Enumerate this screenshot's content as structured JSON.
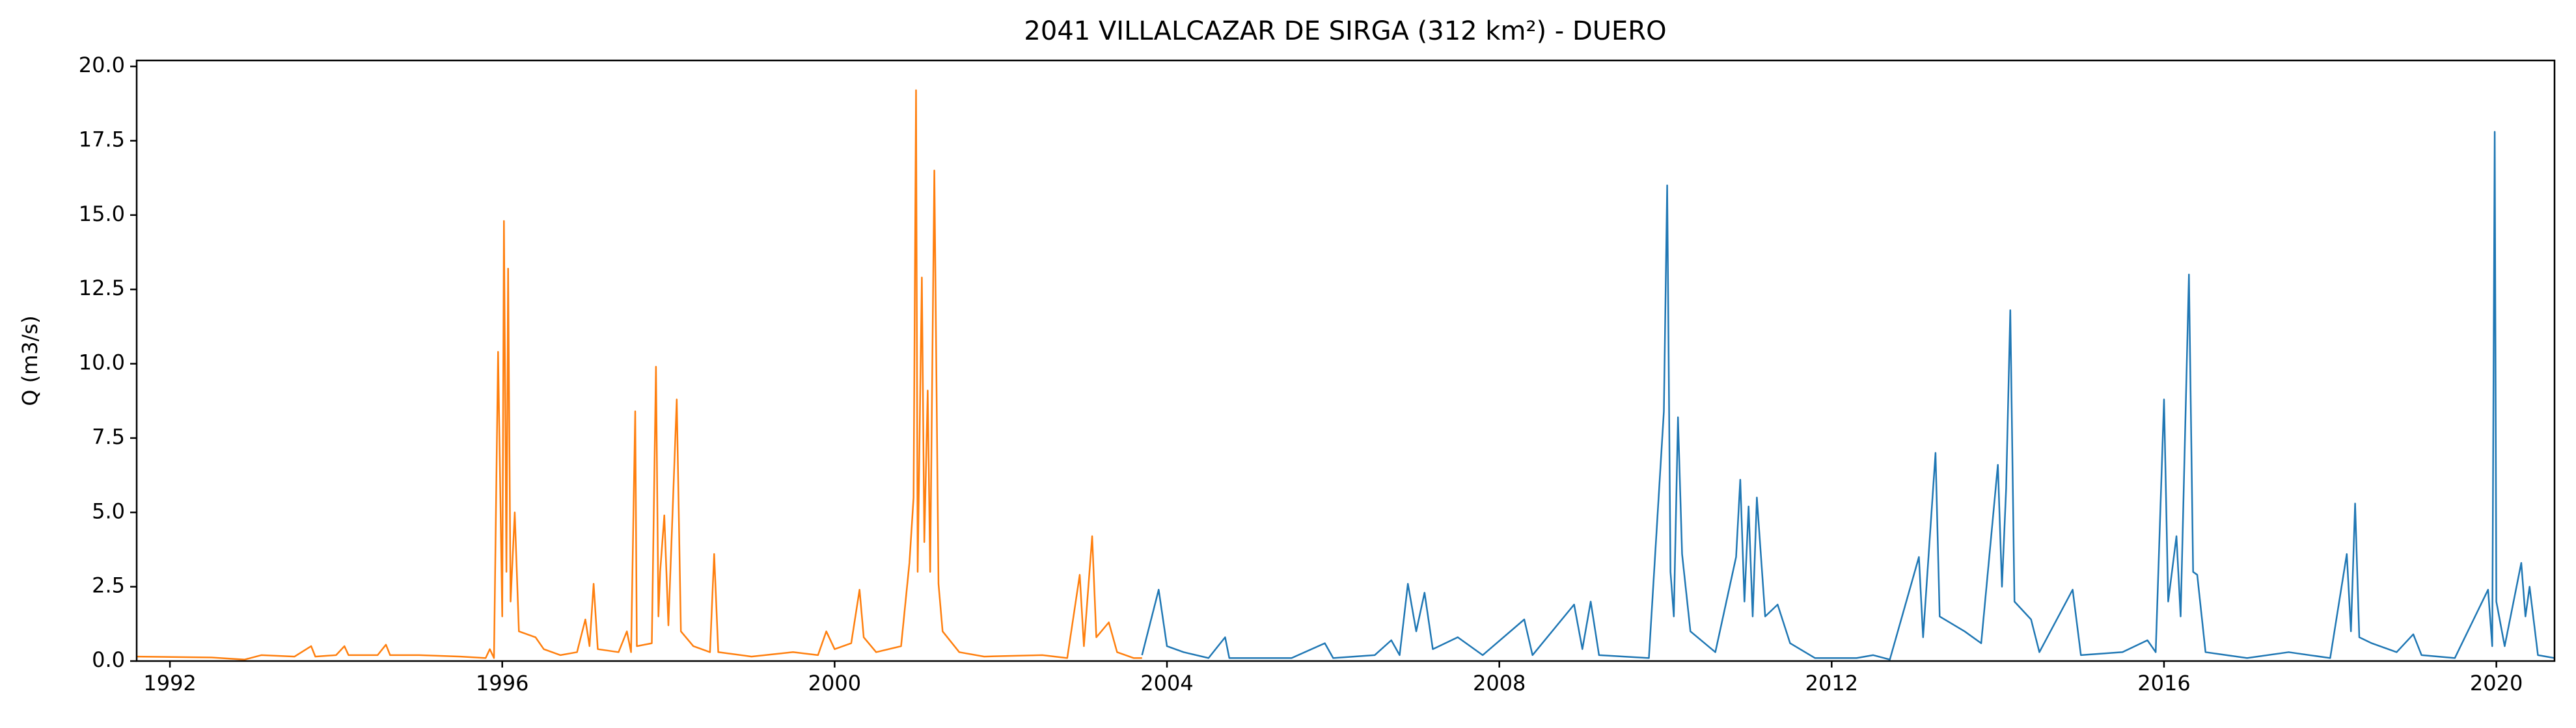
{
  "chart_data": {
    "type": "line",
    "title": "2041 VILLALCAZAR DE SIRGA (312 km²) - DUERO",
    "y_label": "Q (m3/s)",
    "xlim": [
      1991.6,
      2020.7
    ],
    "xticks": [
      1992,
      1996,
      2000,
      2004,
      2008,
      2012,
      2016,
      2020
    ],
    "ylim": [
      0,
      20.2
    ],
    "yticks": [
      {
        "value": 0,
        "label": "0.0"
      },
      2.5,
      {
        "value": 5,
        "label": "5.0"
      },
      7.5,
      {
        "value": 10,
        "label": "10.0"
      },
      12.5,
      {
        "value": 15,
        "label": "15.0"
      },
      17.5,
      {
        "value": 20,
        "label": "20.0"
      }
    ],
    "series": [
      {
        "color": "#ff7f0e",
        "x": [
          1991.6,
          1992.5,
          1992.9,
          1993.1,
          1993.5,
          1993.7,
          1993.75,
          1994.0,
          1994.1,
          1994.15,
          1994.5,
          1994.6,
          1994.65,
          1995.0,
          1995.5,
          1995.8,
          1995.85,
          1995.9,
          1995.95,
          1996.0,
          1996.02,
          1996.05,
          1996.07,
          1996.1,
          1996.15,
          1996.2,
          1996.4,
          1996.5,
          1996.7,
          1996.9,
          1997.0,
          1997.05,
          1997.1,
          1997.15,
          1997.4,
          1997.5,
          1997.55,
          1997.6,
          1997.62,
          1997.8,
          1997.85,
          1997.88,
          1997.9,
          1997.95,
          1998.0,
          1998.1,
          1998.15,
          1998.3,
          1998.5,
          1998.55,
          1998.6,
          1999.0,
          1999.5,
          1999.8,
          1999.9,
          2000.0,
          2000.2,
          2000.3,
          2000.35,
          2000.5,
          2000.8,
          2000.9,
          2000.95,
          2000.98,
          2001.0,
          2001.05,
          2001.08,
          2001.12,
          2001.15,
          2001.2,
          2001.25,
          2001.3,
          2001.5,
          2001.8,
          2002.5,
          2002.8,
          2002.95,
          2003.0,
          2003.1,
          2003.15,
          2003.3,
          2003.4,
          2003.6,
          2003.7
        ],
        "values": [
          0.15,
          0.12,
          0.05,
          0.2,
          0.15,
          0.5,
          0.15,
          0.2,
          0.5,
          0.2,
          0.2,
          0.55,
          0.2,
          0.2,
          0.15,
          0.1,
          0.4,
          0.1,
          10.4,
          1.5,
          14.8,
          3,
          13.2,
          2,
          5,
          1,
          0.8,
          0.4,
          0.2,
          0.3,
          1.4,
          0.5,
          2.6,
          0.4,
          0.3,
          1.0,
          0.3,
          8.4,
          0.5,
          0.6,
          9.9,
          1.5,
          3,
          4.9,
          1.2,
          8.8,
          1.0,
          0.5,
          0.3,
          3.6,
          0.3,
          0.15,
          0.3,
          0.2,
          1.0,
          0.4,
          0.6,
          2.4,
          0.8,
          0.3,
          0.5,
          3.3,
          5.5,
          19.2,
          3,
          12.9,
          4,
          9.1,
          3,
          16.5,
          2.6,
          1,
          0.3,
          0.15,
          0.2,
          0.1,
          2.9,
          0.5,
          4.2,
          0.8,
          1.3,
          0.3,
          0.1,
          0.1
        ]
      },
      {
        "color": "#1f77b4",
        "x": [
          2003.7,
          2003.9,
          2004.0,
          2004.2,
          2004.5,
          2004.7,
          2004.75,
          2005.5,
          2005.9,
          2006.0,
          2006.5,
          2006.7,
          2006.8,
          2006.9,
          2007.0,
          2007.1,
          2007.2,
          2007.5,
          2007.8,
          2008.3,
          2008.4,
          2008.9,
          2009.0,
          2009.1,
          2009.2,
          2009.8,
          2009.98,
          2010.02,
          2010.06,
          2010.1,
          2010.15,
          2010.2,
          2010.3,
          2010.6,
          2010.85,
          2010.9,
          2010.95,
          2011.0,
          2011.05,
          2011.1,
          2011.2,
          2011.35,
          2011.5,
          2011.8,
          2012.3,
          2012.5,
          2012.7,
          2013.05,
          2013.1,
          2013.25,
          2013.3,
          2013.6,
          2013.8,
          2014.0,
          2014.05,
          2014.1,
          2014.15,
          2014.2,
          2014.4,
          2014.5,
          2014.9,
          2015.0,
          2015.5,
          2015.8,
          2015.9,
          2016.0,
          2016.05,
          2016.15,
          2016.2,
          2016.3,
          2016.35,
          2016.4,
          2016.5,
          2017.0,
          2017.5,
          2018.0,
          2018.2,
          2018.25,
          2018.3,
          2018.35,
          2018.5,
          2018.8,
          2019.0,
          2019.1,
          2019.5,
          2019.9,
          2019.95,
          2019.98,
          2020.0,
          2020.1,
          2020.3,
          2020.35,
          2020.4,
          2020.5,
          2020.7
        ],
        "values": [
          0.2,
          2.4,
          0.5,
          0.3,
          0.1,
          0.8,
          0.1,
          0.1,
          0.6,
          0.1,
          0.2,
          0.7,
          0.2,
          2.6,
          1.0,
          2.3,
          0.4,
          0.8,
          0.2,
          1.4,
          0.2,
          1.9,
          0.4,
          2.0,
          0.2,
          0.1,
          8.4,
          16,
          3,
          1.5,
          8.2,
          3.6,
          1,
          0.3,
          3.5,
          6.1,
          2,
          5.2,
          1.5,
          5.5,
          1.5,
          1.9,
          0.6,
          0.1,
          0.1,
          0.2,
          0.05,
          3.5,
          0.8,
          7.0,
          1.5,
          1.0,
          0.6,
          6.6,
          2.5,
          5.8,
          11.8,
          2,
          1.4,
          0.3,
          2.4,
          0.2,
          0.3,
          0.7,
          0.3,
          8.8,
          2,
          4.2,
          1.5,
          13.0,
          3,
          2.9,
          0.3,
          0.1,
          0.3,
          0.1,
          3.6,
          1,
          5.3,
          0.8,
          0.6,
          0.3,
          0.9,
          0.2,
          0.1,
          2.4,
          0.5,
          17.8,
          2,
          0.5,
          3.3,
          1.5,
          2.5,
          0.2,
          0.1
        ]
      }
    ]
  }
}
